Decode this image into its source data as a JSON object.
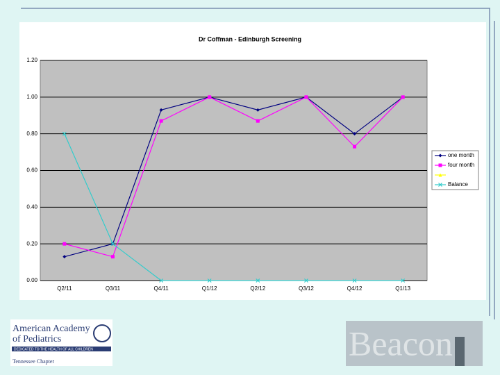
{
  "chart_data": {
    "type": "line",
    "title": "Dr Coffman - Edinburgh Screening",
    "categories": [
      "Q2/11",
      "Q3/11",
      "Q4/11",
      "Q1/12",
      "Q2/12",
      "Q3/12",
      "Q4/12",
      "Q1/13"
    ],
    "series": [
      {
        "name": "one month",
        "color": "#000080",
        "marker": "diamond",
        "values": [
          0.13,
          0.2,
          0.93,
          1.0,
          0.93,
          1.0,
          0.8,
          1.0
        ]
      },
      {
        "name": "four month",
        "color": "#ff00ff",
        "marker": "square",
        "values": [
          0.2,
          0.13,
          0.87,
          1.0,
          0.87,
          1.0,
          0.73,
          1.0
        ]
      },
      {
        "color": "#ffff00",
        "marker": "triangle",
        "values": [
          null,
          null,
          null,
          null,
          null,
          null,
          null,
          null
        ]
      },
      {
        "name": "Balance",
        "color": "#33cccc",
        "marker": "x",
        "values": [
          0.8,
          0.2,
          0.0,
          0.0,
          0.0,
          0.0,
          0.0,
          0.0
        ]
      }
    ],
    "ylim": [
      0,
      1.2
    ],
    "yticks": [
      {
        "value": 0,
        "label": "0.00"
      },
      {
        "value": 0.2,
        "label": "0.20"
      },
      {
        "value": 0.4,
        "label": "0.40"
      },
      {
        "value": 0.6,
        "label": "0.60"
      },
      {
        "value": 0.8,
        "label": "0.80"
      },
      {
        "value": 1.0,
        "label": "1.00"
      },
      {
        "value": 1.2,
        "label": "1.20"
      }
    ],
    "grid": true,
    "legend": "right"
  },
  "logos": {
    "aap": [
      "American Academy",
      "of Pediatrics",
      "DEDICATED TO THE HEALTH OF ALL CHILDREN",
      "Tennessee Chapter"
    ],
    "beacon": "Beacon"
  }
}
